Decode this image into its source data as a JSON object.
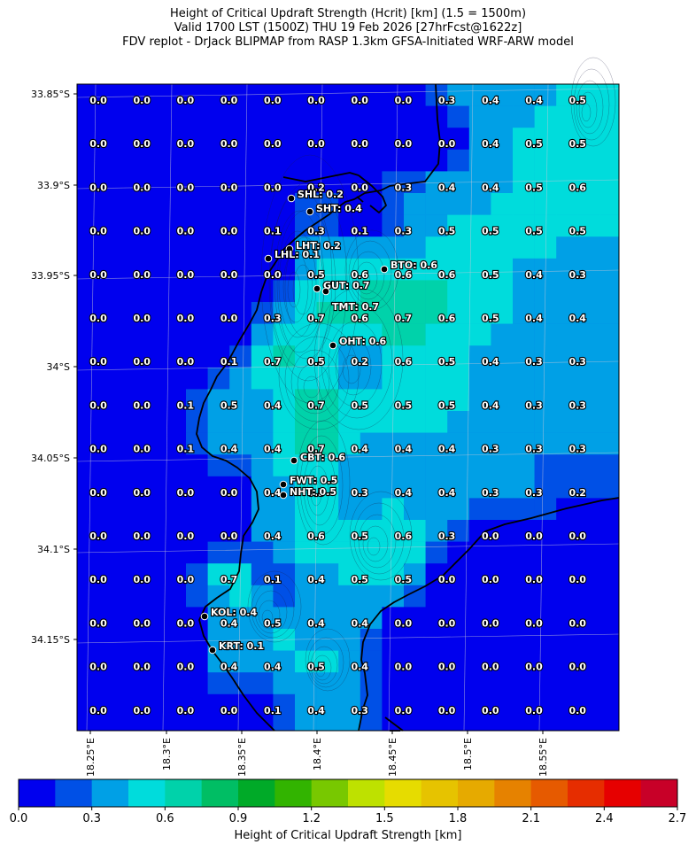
{
  "title": {
    "line1": "Height of Critical Updraft Strength (Hcrit) [km] (1.5 = 1500m)",
    "line2": "Valid 1700 LST (1500Z) THU 19 Feb 2026 [27hrFcst@1622z]",
    "line3": "FDV replot - DrJack BLIPMAP from RASP 1.3km GFSA-Initiated WRF-ARW model"
  },
  "map": {
    "lat_labels": [
      "33.85°S",
      "33.9°S",
      "33.95°S",
      "34°S",
      "34.05°S",
      "34.1°S",
      "34.15°S"
    ],
    "lon_labels": [
      "18.25°E",
      "18.3°E",
      "18.35°E",
      "18.4°E",
      "18.45°E",
      "18.5°E",
      "18.55°E"
    ],
    "grid_values": [
      [
        "0.0",
        "0.0",
        "0.0",
        "0.0",
        "0.0",
        "0.0",
        "0.0",
        "0.0",
        "0.3",
        "0.4",
        "0.4",
        "0.5"
      ],
      [
        "0.0",
        "0.0",
        "0.0",
        "0.0",
        "0.0",
        "0.0",
        "0.0",
        "0.0",
        "0.0",
        "0.4",
        "0.5",
        "0.5"
      ],
      [
        "0.0",
        "0.0",
        "0.0",
        "0.0",
        "0.0",
        "0.2",
        "0.0",
        "0.3",
        "0.4",
        "0.4",
        "0.5",
        "0.6"
      ],
      [
        "0.0",
        "0.0",
        "0.0",
        "0.0",
        "0.1",
        "0.3",
        "0.1",
        "0.3",
        "0.5",
        "0.5",
        "0.5",
        "0.5"
      ],
      [
        "0.0",
        "0.0",
        "0.0",
        "0.0",
        "0.0",
        "0.5",
        "0.6",
        "0.6",
        "0.6",
        "0.5",
        "0.4",
        "0.3"
      ],
      [
        "0.0",
        "0.0",
        "0.0",
        "0.0",
        "0.3",
        "0.7",
        "0.6",
        "0.7",
        "0.6",
        "0.5",
        "0.4",
        "0.4"
      ],
      [
        "0.0",
        "0.0",
        "0.0",
        "0.1",
        "0.7",
        "0.5",
        "0.2",
        "0.6",
        "0.5",
        "0.4",
        "0.3",
        "0.3"
      ],
      [
        "0.0",
        "0.0",
        "0.1",
        "0.5",
        "0.4",
        "0.7",
        "0.5",
        "0.5",
        "0.5",
        "0.4",
        "0.3",
        "0.3"
      ],
      [
        "0.0",
        "0.0",
        "0.1",
        "0.4",
        "0.4",
        "0.7",
        "0.4",
        "0.4",
        "0.4",
        "0.3",
        "0.3",
        "0.3"
      ],
      [
        "0.0",
        "0.0",
        "0.0",
        "0.0",
        "0.4",
        "0.5",
        "0.3",
        "0.4",
        "0.4",
        "0.3",
        "0.3",
        "0.2"
      ],
      [
        "0.0",
        "0.0",
        "0.0",
        "0.0",
        "0.4",
        "0.6",
        "0.5",
        "0.6",
        "0.3",
        "0.0",
        "0.0",
        "0.0"
      ],
      [
        "0.0",
        "0.0",
        "0.0",
        "0.7",
        "0.1",
        "0.4",
        "0.5",
        "0.5",
        "0.0",
        "0.0",
        "0.0",
        "0.0"
      ],
      [
        "0.0",
        "0.0",
        "0.0",
        "0.4",
        "0.5",
        "0.4",
        "0.4",
        "0.0",
        "0.0",
        "0.0",
        "0.0",
        "0.0"
      ],
      [
        "0.0",
        "0.0",
        "0.0",
        "0.4",
        "0.4",
        "0.5",
        "0.4",
        "0.0",
        "0.0",
        "0.0",
        "0.0",
        "0.0"
      ],
      [
        "0.0",
        "0.0",
        "0.0",
        "0.0",
        "0.1",
        "0.4",
        "0.3",
        "0.0",
        "0.0",
        "0.0",
        "0.0",
        "0.0"
      ]
    ],
    "stations": [
      {
        "label": "SHL: 0.2"
      },
      {
        "label": "SHT: 0.4"
      },
      {
        "label": "LHT: 0.2"
      },
      {
        "label": "LHL: 0.1"
      },
      {
        "label": "BTO: 0.6"
      },
      {
        "label": "GUT: 0.7"
      },
      {
        "label": "TMT: 0.7"
      },
      {
        "label": "OHT: 0.6"
      },
      {
        "label": "CBT: 0.6"
      },
      {
        "label": "FWT: 0.5"
      },
      {
        "label": "NHT: 0.5"
      },
      {
        "label": "KOL: 0.4"
      },
      {
        "label": "KRT: 0.1"
      }
    ]
  },
  "colorbar": {
    "label": "Height of Critical Updraft Strength [km]",
    "tick_labels": [
      "0.0",
      "0.3",
      "0.6",
      "0.9",
      "1.2",
      "1.5",
      "1.8",
      "2.1",
      "2.4",
      "2.7"
    ],
    "colors": [
      "#0000ee",
      "#0050e6",
      "#00a0e6",
      "#00dcdc",
      "#00d2aa",
      "#00be64",
      "#00aa28",
      "#32b400",
      "#78c800",
      "#bee100",
      "#e6dc00",
      "#e6c300",
      "#e6aa00",
      "#e68200",
      "#e65a00",
      "#e62d00",
      "#e60000",
      "#c80028"
    ]
  }
}
